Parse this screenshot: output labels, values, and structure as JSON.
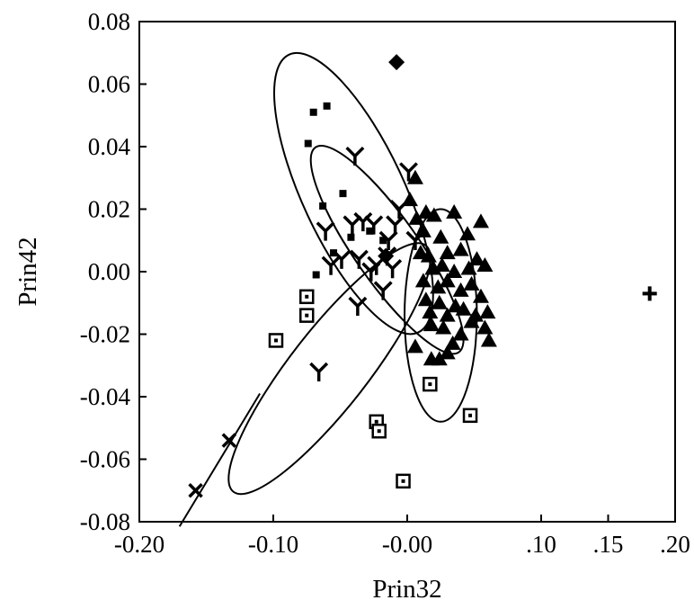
{
  "chart_data": {
    "type": "scatter",
    "title": "",
    "xlabel": "Prin32",
    "ylabel": "Prin42",
    "xlim": [
      -0.2,
      0.2
    ],
    "ylim": [
      -0.08,
      0.08
    ],
    "grid": false,
    "x_ticks": [
      {
        "value": -0.2,
        "label": "-0.20"
      },
      {
        "value": -0.1,
        "label": "-0.10"
      },
      {
        "value": 0.0,
        "label": "-0.00"
      },
      {
        "value": 0.1,
        "label": ".10"
      },
      {
        "value": 0.15,
        "label": ".15"
      },
      {
        "value": 0.2,
        "label": ".20"
      }
    ],
    "y_ticks": [
      {
        "value": 0.08,
        "label": "0.08"
      },
      {
        "value": 0.06,
        "label": "0.06"
      },
      {
        "value": 0.04,
        "label": "0.04"
      },
      {
        "value": 0.02,
        "label": "0.02"
      },
      {
        "value": 0.0,
        "label": "0.00"
      },
      {
        "value": -0.02,
        "label": "-0.02"
      },
      {
        "value": -0.04,
        "label": "-0.04"
      },
      {
        "value": -0.06,
        "label": "-0.06"
      },
      {
        "value": -0.08,
        "label": "-0.08"
      }
    ],
    "series": [
      {
        "marker": "star",
        "points": [
          [
            -0.07,
            0.051
          ],
          [
            -0.06,
            0.053
          ],
          [
            -0.074,
            0.041
          ],
          [
            -0.048,
            0.025
          ],
          [
            -0.063,
            0.021
          ],
          [
            -0.028,
            0.013
          ],
          [
            -0.042,
            0.011
          ],
          [
            -0.055,
            0.006
          ],
          [
            -0.068,
            -0.001
          ],
          [
            -0.018,
            0.01
          ]
        ]
      },
      {
        "marker": "Y",
        "points": [
          [
            -0.039,
            0.037
          ],
          [
            -0.061,
            0.013
          ],
          [
            -0.033,
            0.016
          ],
          [
            -0.041,
            0.015
          ],
          [
            -0.025,
            0.015
          ],
          [
            -0.006,
            0.02
          ],
          [
            -0.014,
            0.01
          ],
          [
            -0.009,
            0.015
          ],
          [
            0.006,
            0.01
          ],
          [
            -0.036,
            0.004
          ],
          [
            -0.023,
            0.002
          ],
          [
            -0.015,
            0.005
          ],
          [
            -0.011,
            0.001
          ],
          [
            -0.057,
            0.002
          ],
          [
            -0.049,
            0.004
          ],
          [
            -0.018,
            -0.006
          ],
          [
            -0.037,
            -0.011
          ],
          [
            -0.027,
            0.0
          ],
          [
            -0.066,
            -0.032
          ],
          [
            0.001,
            0.032
          ]
        ]
      },
      {
        "marker": "diamond",
        "points": [
          [
            -0.008,
            0.067
          ],
          [
            -0.016,
            0.005
          ]
        ]
      },
      {
        "marker": "triangle",
        "points": [
          [
            0.006,
            0.03
          ],
          [
            0.002,
            0.023
          ],
          [
            0.007,
            0.017
          ],
          [
            0.014,
            0.019
          ],
          [
            0.02,
            0.018
          ],
          [
            0.035,
            0.019
          ],
          [
            0.045,
            0.012
          ],
          [
            0.012,
            0.013
          ],
          [
            0.025,
            0.011
          ],
          [
            0.055,
            0.016
          ],
          [
            0.01,
            0.006
          ],
          [
            0.016,
            0.005
          ],
          [
            0.03,
            0.006
          ],
          [
            0.04,
            0.007
          ],
          [
            0.052,
            0.004
          ],
          [
            0.019,
            0.001
          ],
          [
            0.026,
            0.002
          ],
          [
            0.035,
            0.0
          ],
          [
            0.046,
            0.001
          ],
          [
            0.058,
            0.002
          ],
          [
            0.012,
            -0.003
          ],
          [
            0.023,
            -0.005
          ],
          [
            0.03,
            -0.003
          ],
          [
            0.04,
            -0.006
          ],
          [
            0.048,
            -0.004
          ],
          [
            0.055,
            -0.008
          ],
          [
            0.014,
            -0.009
          ],
          [
            0.017,
            -0.013
          ],
          [
            0.024,
            -0.01
          ],
          [
            0.03,
            -0.014
          ],
          [
            0.036,
            -0.011
          ],
          [
            0.042,
            -0.012
          ],
          [
            0.051,
            -0.014
          ],
          [
            0.06,
            -0.013
          ],
          [
            0.018,
            -0.017
          ],
          [
            0.027,
            -0.018
          ],
          [
            0.04,
            -0.02
          ],
          [
            0.048,
            -0.016
          ],
          [
            0.058,
            -0.018
          ],
          [
            0.034,
            -0.023
          ],
          [
            0.061,
            -0.022
          ],
          [
            0.006,
            -0.024
          ],
          [
            0.018,
            -0.028
          ],
          [
            0.024,
            -0.028
          ],
          [
            0.03,
            -0.026
          ]
        ]
      },
      {
        "marker": "open-square",
        "points": [
          [
            -0.075,
            -0.008
          ],
          [
            -0.075,
            -0.014
          ],
          [
            -0.098,
            -0.022
          ],
          [
            -0.023,
            -0.048
          ],
          [
            -0.021,
            -0.051
          ],
          [
            -0.003,
            -0.067
          ],
          [
            0.017,
            -0.036
          ],
          [
            0.047,
            -0.046
          ]
        ]
      },
      {
        "marker": "x",
        "points": [
          [
            -0.158,
            -0.07
          ],
          [
            -0.133,
            -0.054
          ]
        ]
      },
      {
        "marker": "plus",
        "points": [
          [
            0.181,
            -0.007
          ]
        ]
      }
    ],
    "ellipses": [
      {
        "cx": -0.04,
        "cy": 0.025,
        "rx": 0.038,
        "ry": 0.049,
        "angle": -25
      },
      {
        "cx": -0.015,
        "cy": 0.007,
        "rx": 0.024,
        "ry": 0.04,
        "angle": -35
      },
      {
        "cx": 0.025,
        "cy": -0.014,
        "rx": 0.027,
        "ry": 0.034,
        "angle": 0
      },
      {
        "cx": -0.058,
        "cy": -0.031,
        "rx": 0.029,
        "ry": 0.05,
        "angle": 38
      }
    ],
    "fit_line": {
      "points": [
        [
          -0.17,
          -0.0815
        ],
        [
          -0.11,
          -0.039
        ]
      ]
    }
  }
}
